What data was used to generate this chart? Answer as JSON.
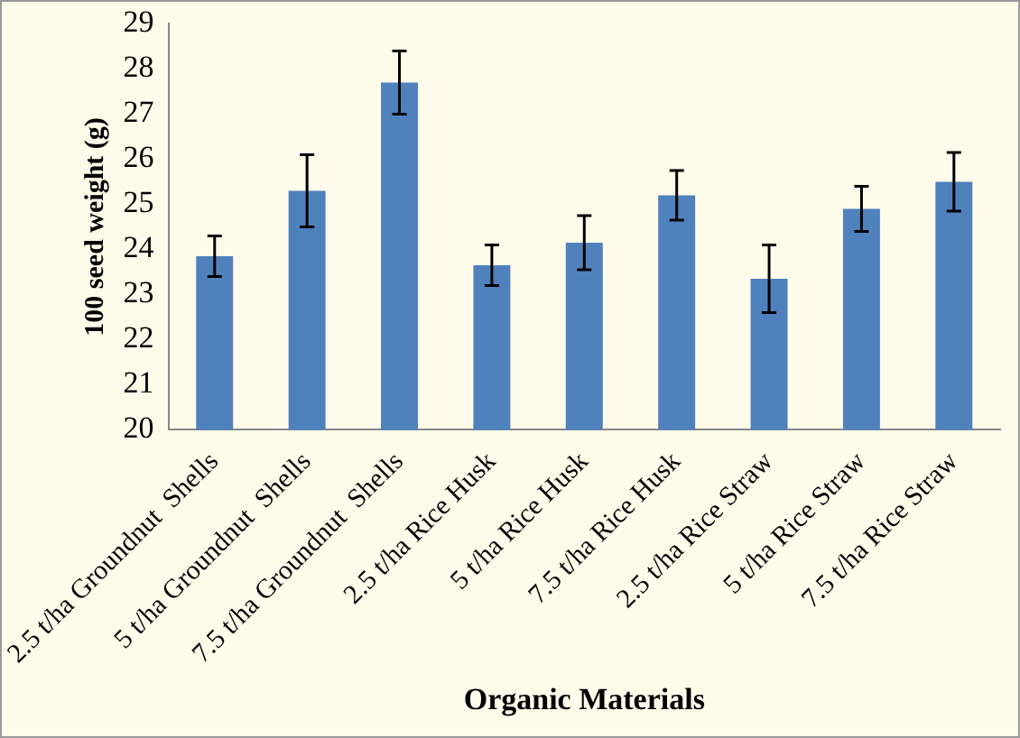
{
  "chart_data": {
    "type": "bar",
    "xlabel": "Organic Materials",
    "ylabel": "100 seed weight (g)",
    "categories": [
      "2.5 t/ha Groundnut  Shells",
      "5 t/ha Groundnut  Shells",
      "7.5 t/ha Groundnut  Shells",
      "2.5 t/ha Rice Husk",
      "5 t/ha Rice Husk",
      "7.5 t/ha Rice Husk",
      "2.5 t/ha Rice Straw",
      "5 t/ha Rice Straw",
      "7.5 t/ha Rice Straw"
    ],
    "values": [
      23.85,
      25.3,
      27.7,
      23.65,
      24.15,
      25.2,
      23.35,
      24.9,
      25.5
    ],
    "errors": [
      0.45,
      0.8,
      0.7,
      0.45,
      0.6,
      0.55,
      0.75,
      0.5,
      0.65
    ],
    "color": "#4f81bd",
    "ylim": [
      20,
      29
    ],
    "yticks": [
      20,
      21,
      22,
      23,
      24,
      25,
      26,
      27,
      28,
      29
    ],
    "grid": false,
    "legend": false
  }
}
